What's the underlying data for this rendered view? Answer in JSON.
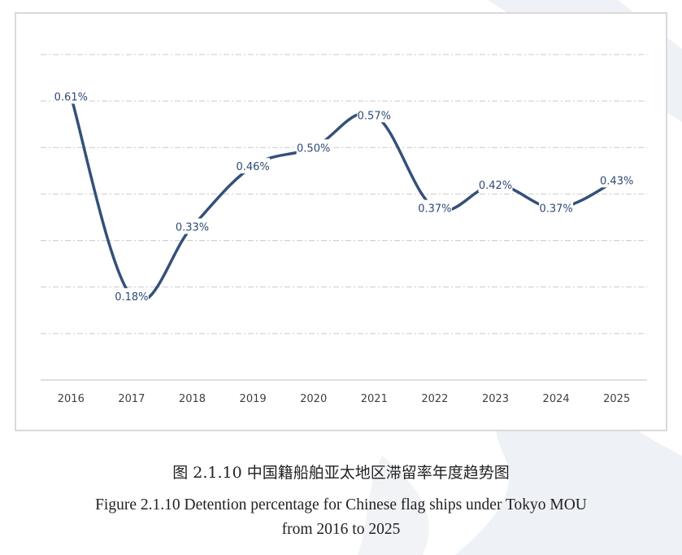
{
  "caption": {
    "chinese": "图 2.1.10 中国籍船舶亚太地区滞留率年度趋势图",
    "english_line1": "Figure 2.1.10 Detention percentage for Chinese flag ships under Tokyo MOU",
    "english_line2": "from 2016 to 2025"
  },
  "colors": {
    "line": "#34507a",
    "label": "#2f4a74",
    "grid": "#c9c9c9",
    "axis": "#bfbfbf",
    "tick_text": "#404040"
  },
  "chart_data": {
    "type": "line",
    "title": "",
    "xlabel": "",
    "ylabel": "",
    "categories": [
      "2016",
      "2017",
      "2018",
      "2019",
      "2020",
      "2021",
      "2022",
      "2023",
      "2024",
      "2025"
    ],
    "series": [
      {
        "values": [
          0.61,
          0.18,
          0.33,
          0.46,
          0.5,
          0.57,
          0.37,
          0.42,
          0.37,
          0.43
        ],
        "labels": [
          "0.61%",
          "0.18%",
          "0.33%",
          "0.46%",
          "0.50%",
          "0.57%",
          "0.37%",
          "0.42%",
          "0.37%",
          "0.43%"
        ]
      }
    ],
    "ylim": [
      0,
      0.7
    ],
    "grid": true,
    "smooth": true,
    "legend": "none"
  }
}
